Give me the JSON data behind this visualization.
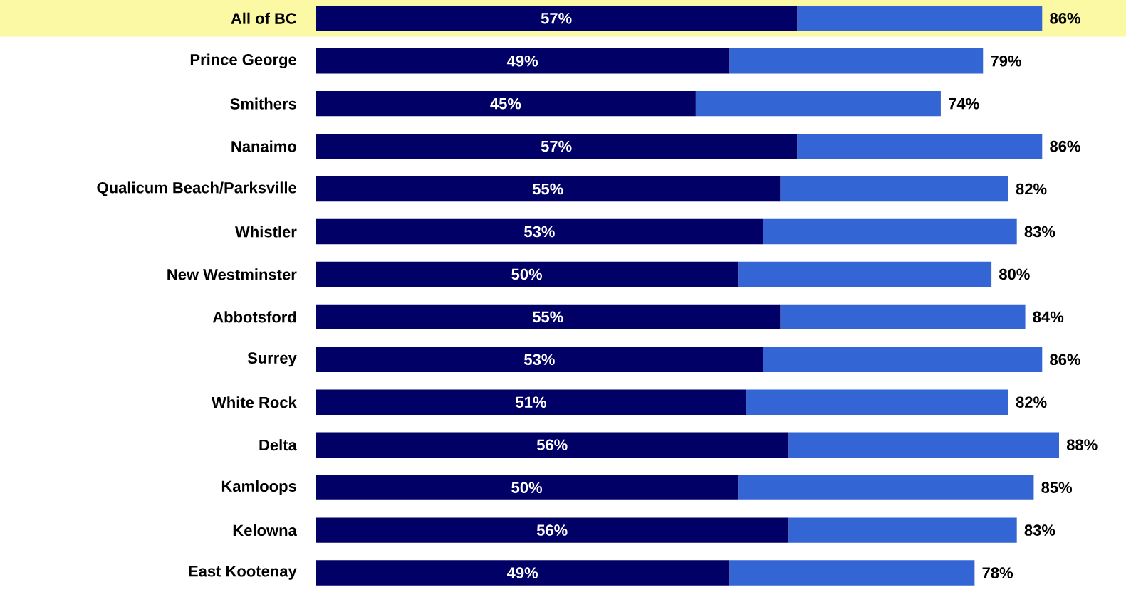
{
  "chart_data": {
    "type": "bar",
    "orientation": "horizontal",
    "stacked": true,
    "categories": [
      "All of BC",
      "Prince George",
      "Smithers",
      "Nanaimo",
      "Qualicum Beach/Parksville",
      "Whistler",
      "New Westminster",
      "Abbotsford",
      "Surrey",
      "White Rock",
      "Delta",
      "Kamloops",
      "Kelowna",
      "East Kootenay"
    ],
    "series": [
      {
        "color": "#000066",
        "values": [
          57,
          49,
          45,
          57,
          55,
          53,
          50,
          55,
          53,
          51,
          56,
          50,
          56,
          49
        ],
        "value_labels": [
          "57%",
          "49%",
          "45%",
          "57%",
          "55%",
          "53%",
          "50%",
          "55%",
          "53%",
          "51%",
          "56%",
          "50%",
          "56%",
          "49%"
        ]
      },
      {
        "color": "#3366d4",
        "values": [
          29,
          30,
          29,
          29,
          27,
          30,
          30,
          29,
          33,
          31,
          32,
          35,
          27,
          29
        ]
      }
    ],
    "totals": [
      "86%",
      "79%",
      "74%",
      "86%",
      "82%",
      "83%",
      "80%",
      "84%",
      "86%",
      "82%",
      "88%",
      "85%",
      "83%",
      "78%"
    ],
    "bands": [
      {
        "axis": "y",
        "from": "All of BC",
        "to": "All of BC",
        "color": "#fcf9a4"
      }
    ]
  }
}
